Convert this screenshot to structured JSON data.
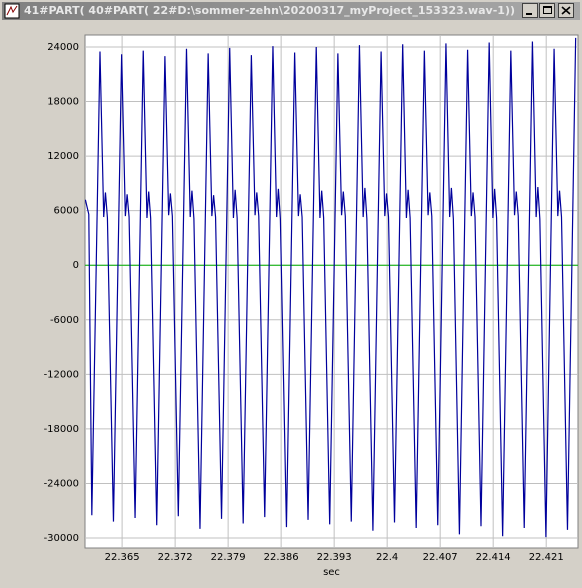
{
  "window_title": "41#PART( 40#PART( 22#D:\\sommer-zehn\\20200317_myProject_153323.wav-1))",
  "chart_data": {
    "type": "line",
    "xlabel": "sec",
    "color": "#00009c",
    "zero_line_color": "#00b000",
    "grid": true,
    "xlim": [
      22.3601,
      22.4252
    ],
    "ylim": [
      -31100,
      25320
    ],
    "xticks": [
      22.365,
      22.372,
      22.379,
      22.386,
      22.393,
      22.4,
      22.407,
      22.414,
      22.421
    ],
    "yticks": [
      -30000,
      -24000,
      -18000,
      -12000,
      -6000,
      0,
      6000,
      12000,
      18000,
      24000
    ],
    "x": [
      22.36015,
      22.3606,
      22.361,
      22.36208,
      22.36257,
      22.3628,
      22.36306,
      22.36386,
      22.36494,
      22.36543,
      22.36566,
      22.36592,
      22.36671,
      22.36779,
      22.36828,
      22.36851,
      22.36877,
      22.36957,
      22.37065,
      22.37114,
      22.37137,
      22.37163,
      22.37242,
      22.3735,
      22.37399,
      22.37422,
      22.37448,
      22.37528,
      22.37636,
      22.37685,
      22.37708,
      22.37734,
      22.37813,
      22.37921,
      22.3797,
      22.37993,
      22.38019,
      22.38099,
      22.38207,
      22.38256,
      22.38279,
      22.38305,
      22.38384,
      22.38492,
      22.38541,
      22.38564,
      22.3859,
      22.3867,
      22.38778,
      22.38827,
      22.3885,
      22.38876,
      22.38955,
      22.39063,
      22.39112,
      22.39135,
      22.39161,
      22.39241,
      22.39349,
      22.39398,
      22.39421,
      22.39447,
      22.39526,
      22.39634,
      22.39683,
      22.39706,
      22.39732,
      22.39812,
      22.3992,
      22.39969,
      22.39992,
      22.40018,
      22.40097,
      22.40205,
      22.40254,
      22.40277,
      22.40303,
      22.40383,
      22.40491,
      22.4054,
      22.40563,
      22.40589,
      22.40668,
      22.40776,
      22.40825,
      22.40848,
      22.40874,
      22.40954,
      22.41062,
      22.41111,
      22.41134,
      22.4116,
      22.41239,
      22.41347,
      22.41396,
      22.41419,
      22.41445,
      22.41525,
      22.41633,
      22.41682,
      22.41705,
      22.41731,
      22.4181,
      22.41918,
      22.41967,
      22.4199,
      22.42016,
      22.42096,
      22.42204,
      22.42253,
      22.42276,
      22.42302,
      22.42381,
      22.42489
    ],
    "values": [
      7200,
      5600,
      -27500,
      23500,
      5300,
      8000,
      5200,
      -28200,
      23200,
      5400,
      7800,
      5300,
      -27800,
      23600,
      5200,
      8100,
      5200,
      -28600,
      23000,
      5500,
      7900,
      5400,
      -27600,
      23800,
      5300,
      8200,
      5100,
      -29000,
      23300,
      5400,
      7700,
      5300,
      -27900,
      23900,
      5200,
      8300,
      5200,
      -28400,
      23100,
      5500,
      8000,
      5400,
      -27700,
      24100,
      5300,
      8400,
      5100,
      -28800,
      23400,
      5400,
      7800,
      5300,
      -28000,
      24000,
      5200,
      8200,
      5200,
      -28500,
      23300,
      5500,
      8100,
      5400,
      -28200,
      24200,
      5300,
      8500,
      5100,
      -29200,
      23500,
      5400,
      7900,
      5300,
      -28300,
      24300,
      5200,
      8300,
      5200,
      -28900,
      23600,
      5500,
      8000,
      5400,
      -28600,
      24400,
      5300,
      8500,
      5100,
      -29600,
      23700,
      5400,
      8000,
      5300,
      -28700,
      24500,
      5200,
      8400,
      5200,
      -29800,
      23600,
      5500,
      8100,
      5400,
      -28900,
      24600,
      5300,
      8600,
      5100,
      -29900,
      23800,
      5400,
      8200,
      5300,
      -29100,
      25000
    ]
  }
}
